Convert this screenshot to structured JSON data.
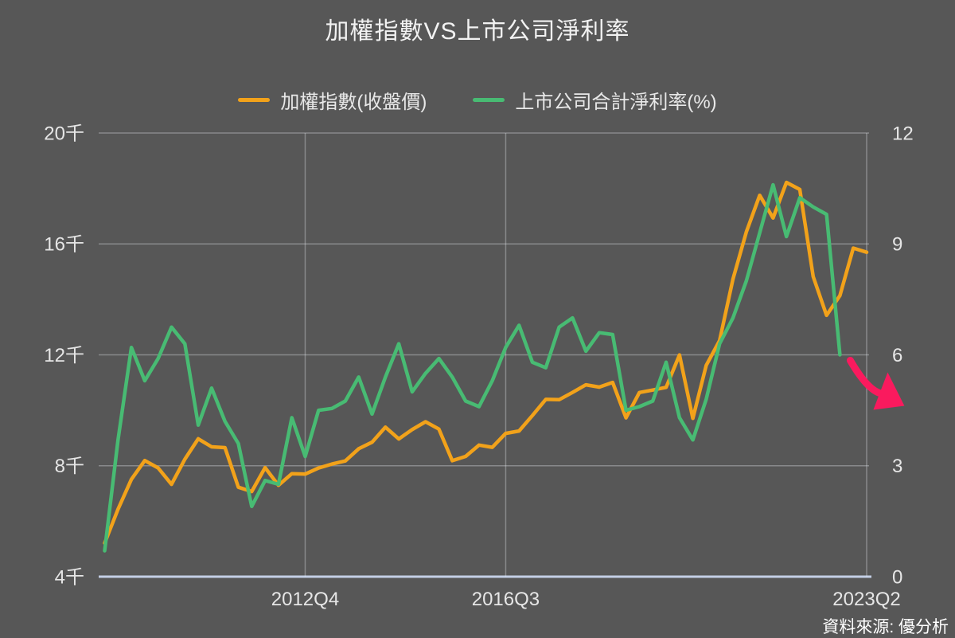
{
  "header": {
    "title": "加權指數VS上市公司淨利率"
  },
  "legend": [
    {
      "label": "加權指數(收盤價)",
      "color": "#F2A21A",
      "series": "taiex"
    },
    {
      "label": "上市公司合計淨利率(%)",
      "color": "#48BB73",
      "series": "net_margin"
    }
  ],
  "source": {
    "text": "資料來源: 優分析"
  },
  "colors": {
    "background": "#575757",
    "grid": "rgba(240,244,250,0.32)",
    "axis_baseline": "#C3CFE6",
    "tick_text": "#E6E6E6",
    "taiex_orange": "#F2A21A",
    "margin_green": "#48BB73",
    "arrow_pink": "#FA1A5E"
  },
  "chart_data": {
    "type": "line",
    "title": "加權指數VS上市公司淨利率",
    "categories": [
      "2009Q1",
      "2009Q2",
      "2009Q3",
      "2009Q4",
      "2010Q1",
      "2010Q2",
      "2010Q3",
      "2010Q4",
      "2011Q1",
      "2011Q2",
      "2011Q3",
      "2011Q4",
      "2012Q1",
      "2012Q2",
      "2012Q3",
      "2012Q4",
      "2013Q1",
      "2013Q2",
      "2013Q3",
      "2013Q4",
      "2014Q1",
      "2014Q2",
      "2014Q3",
      "2014Q4",
      "2015Q1",
      "2015Q2",
      "2015Q3",
      "2015Q4",
      "2016Q1",
      "2016Q2",
      "2016Q3",
      "2016Q4",
      "2017Q1",
      "2017Q2",
      "2017Q3",
      "2017Q4",
      "2018Q1",
      "2018Q2",
      "2018Q3",
      "2018Q4",
      "2019Q1",
      "2019Q2",
      "2019Q3",
      "2019Q4",
      "2020Q1",
      "2020Q2",
      "2020Q3",
      "2020Q4",
      "2021Q1",
      "2021Q2",
      "2021Q3",
      "2021Q4",
      "2022Q1",
      "2022Q2",
      "2022Q3",
      "2022Q4",
      "2023Q1",
      "2023Q2"
    ],
    "series": [
      {
        "name": "加權指數(收盤價)",
        "axis": "left",
        "color": "#F2A21A",
        "values": [
          5210,
          6432,
          7509,
          8188,
          7920,
          7329,
          8237,
          8973,
          8683,
          8653,
          7225,
          7072,
          7933,
          7296,
          7715,
          7700,
          7919,
          8062,
          8173,
          8612,
          8849,
          9393,
          8967,
          9307,
          9586,
          9323,
          8181,
          8338,
          8745,
          8666,
          9167,
          9254,
          9812,
          10395,
          10384,
          10643,
          10919,
          10837,
          11006,
          9727,
          10641,
          10731,
          10829,
          11997,
          9708,
          11621,
          12515,
          14732,
          16431,
          17755,
          16935,
          18218,
          17963,
          14825,
          13424,
          14137,
          15849,
          15700
        ]
      },
      {
        "name": "上市公司合計淨利率(%)",
        "axis": "right",
        "color": "#48BB73",
        "values": [
          0.7,
          3.7,
          6.2,
          5.3,
          5.9,
          6.75,
          6.3,
          4.1,
          5.1,
          4.2,
          3.6,
          1.9,
          2.6,
          2.5,
          4.3,
          3.25,
          4.5,
          4.55,
          4.75,
          5.4,
          4.4,
          5.4,
          6.3,
          5.0,
          5.5,
          5.9,
          5.4,
          4.75,
          4.6,
          5.3,
          6.2,
          6.8,
          5.8,
          5.65,
          6.75,
          7.0,
          6.1,
          6.6,
          6.55,
          4.5,
          4.6,
          4.75,
          5.8,
          4.3,
          3.7,
          4.8,
          6.3,
          7.0,
          8.0,
          9.3,
          10.6,
          9.2,
          10.25,
          10.0,
          9.8,
          6.0,
          null,
          null
        ]
      }
    ],
    "y_left": {
      "range": [
        4000,
        20000
      ],
      "ticks": [
        {
          "label": "4千",
          "value": 4000
        },
        {
          "label": "8千",
          "value": 8000
        },
        {
          "label": "12千",
          "value": 12000
        },
        {
          "label": "16千",
          "value": 16000
        },
        {
          "label": "20千",
          "value": 20000
        }
      ]
    },
    "y_right": {
      "range": [
        0,
        12
      ],
      "ticks": [
        {
          "label": "0",
          "value": 0
        },
        {
          "label": "3",
          "value": 3
        },
        {
          "label": "6",
          "value": 6
        },
        {
          "label": "9",
          "value": 9
        },
        {
          "label": "12",
          "value": 12
        }
      ]
    },
    "x_ticks": [
      {
        "label": "2012Q4",
        "index": 15
      },
      {
        "label": "2016Q3",
        "index": 30
      },
      {
        "label": "2023Q2",
        "index": 57
      }
    ],
    "grid": true,
    "legend_position": "top",
    "annotation": {
      "type": "arrow",
      "color": "#FA1A5E",
      "attach_series": "上市公司合計淨利率(%)",
      "attach_index": 55,
      "attach_value": 6.0,
      "direction": "down-right"
    }
  }
}
